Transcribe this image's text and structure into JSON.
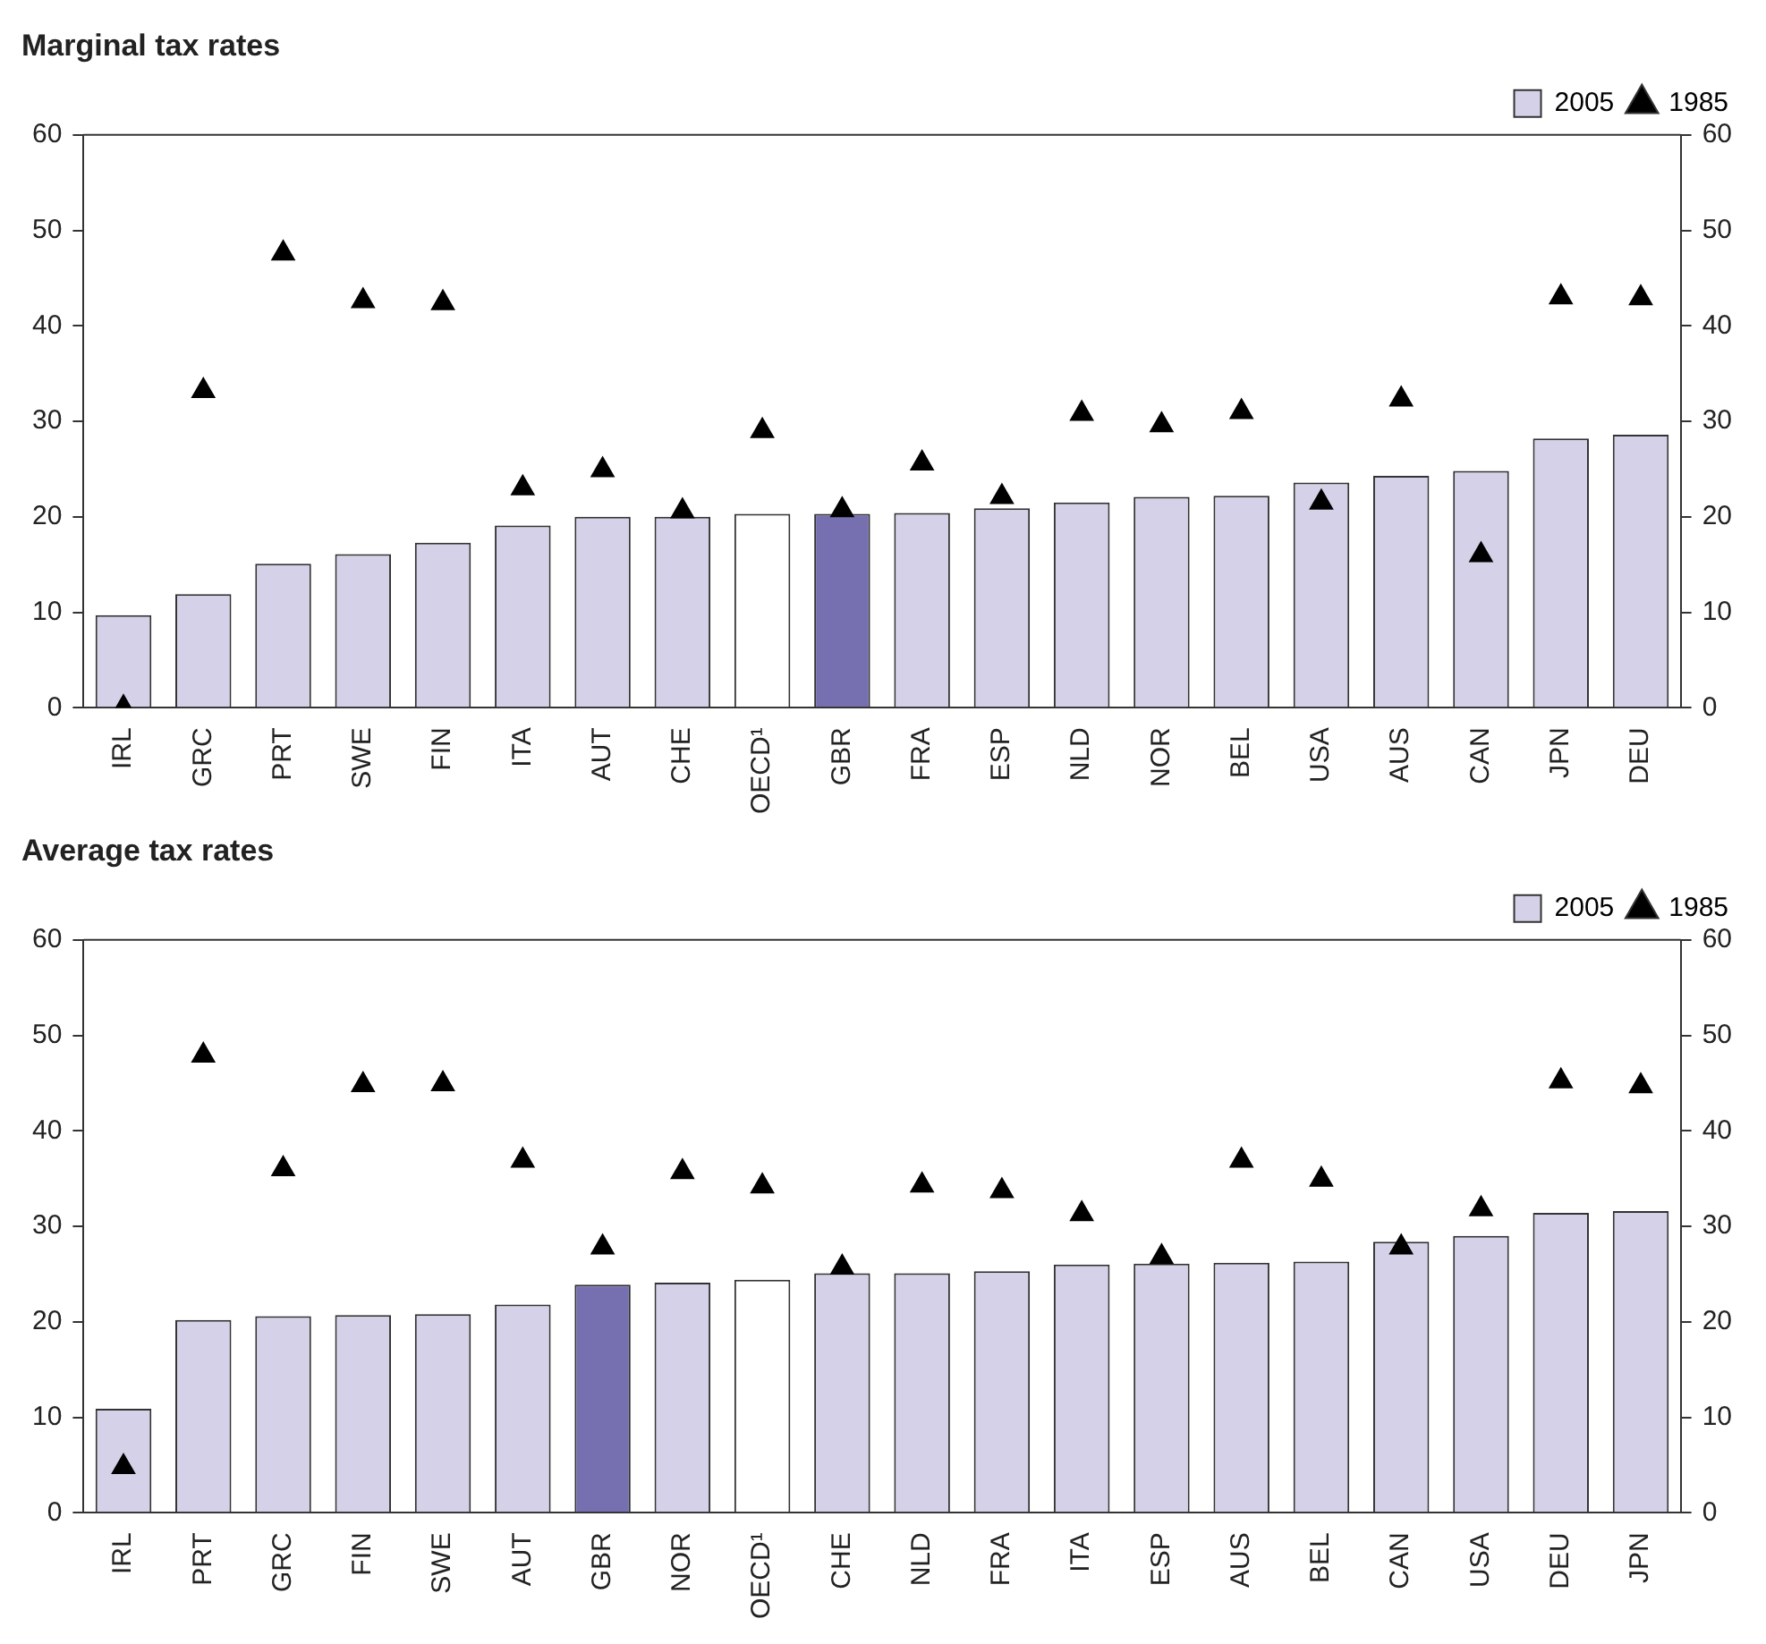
{
  "chart_data": [
    {
      "type": "bar",
      "title": "Marginal tax rates",
      "categories": [
        "IRL",
        "GRC",
        "PRT",
        "SWE",
        "FIN",
        "ITA",
        "AUT",
        "CHE",
        "OECD¹",
        "GBR",
        "FRA",
        "ESP",
        "NLD",
        "NOR",
        "BEL",
        "USA",
        "AUS",
        "CAN",
        "JPN",
        "DEU"
      ],
      "series": [
        {
          "name": "2005",
          "color": "#d4d1e8",
          "colors": [
            "#d4d1e8",
            "#d4d1e8",
            "#d4d1e8",
            "#d4d1e8",
            "#d4d1e8",
            "#d4d1e8",
            "#d4d1e8",
            "#d4d1e8",
            "#ffffff",
            "#7670b0",
            "#d4d1e8",
            "#d4d1e8",
            "#d4d1e8",
            "#d4d1e8",
            "#d4d1e8",
            "#d4d1e8",
            "#d4d1e8",
            "#d4d1e8",
            "#d4d1e8",
            "#d4d1e8"
          ],
          "values": [
            9.7,
            11.9,
            15.1,
            16.1,
            17.3,
            19.1,
            20.0,
            20.0,
            20.3,
            20.3,
            20.4,
            20.9,
            21.5,
            22.1,
            22.2,
            23.6,
            24.3,
            24.8,
            28.2,
            28.6
          ]
        },
        {
          "name": "1985",
          "type": "scatter",
          "color": "#000000",
          "values": [
            0,
            33.2,
            47.6,
            42.6,
            42.4,
            23.0,
            24.9,
            20.6,
            29.0,
            20.7,
            25.6,
            22.1,
            30.8,
            29.6,
            31.0,
            21.5,
            32.3,
            16.0,
            43.0,
            42.9
          ]
        }
      ],
      "ylim": [
        0,
        60
      ],
      "yticks": [
        0,
        10,
        20,
        30,
        40,
        50,
        60
      ],
      "y2lim": [
        0,
        60
      ],
      "y2ticks": [
        0,
        10,
        20,
        30,
        40,
        50,
        60
      ],
      "grid": false,
      "legend": "top right",
      "marker": "triangle"
    },
    {
      "type": "bar",
      "title": "Average tax rates",
      "categories": [
        "IRL",
        "PRT",
        "GRC",
        "FIN",
        "SWE",
        "AUT",
        "GBR",
        "NOR",
        "OECD¹",
        "CHE",
        "NLD",
        "FRA",
        "ITA",
        "ESP",
        "AUS",
        "BEL",
        "CAN",
        "USA",
        "DEU",
        "JPN"
      ],
      "series": [
        {
          "name": "2005",
          "color": "#d4d1e8",
          "colors": [
            "#d4d1e8",
            "#d4d1e8",
            "#d4d1e8",
            "#d4d1e8",
            "#d4d1e8",
            "#d4d1e8",
            "#7670b0",
            "#d4d1e8",
            "#ffffff",
            "#d4d1e8",
            "#d4d1e8",
            "#d4d1e8",
            "#d4d1e8",
            "#d4d1e8",
            "#d4d1e8",
            "#d4d1e8",
            "#d4d1e8",
            "#d4d1e8",
            "#d4d1e8",
            "#d4d1e8"
          ],
          "values": [
            10.9,
            20.2,
            20.6,
            20.7,
            20.8,
            21.8,
            23.9,
            24.1,
            24.4,
            25.1,
            25.1,
            25.3,
            26.0,
            26.1,
            26.2,
            26.3,
            28.4,
            29.0,
            31.4,
            31.6
          ]
        },
        {
          "name": "1985",
          "type": "scatter",
          "color": "#000000",
          "values": [
            4.8,
            47.9,
            36.0,
            44.8,
            44.9,
            36.9,
            27.8,
            35.7,
            34.2,
            25.7,
            34.3,
            33.7,
            31.3,
            26.8,
            36.9,
            34.9,
            27.8,
            31.8,
            45.2,
            44.7
          ]
        }
      ],
      "ylim": [
        0,
        60
      ],
      "yticks": [
        0,
        10,
        20,
        30,
        40,
        50,
        60
      ],
      "y2lim": [
        0,
        60
      ],
      "y2ticks": [
        0,
        10,
        20,
        30,
        40,
        50,
        60
      ],
      "grid": false,
      "legend": "top right",
      "marker": "triangle"
    }
  ]
}
